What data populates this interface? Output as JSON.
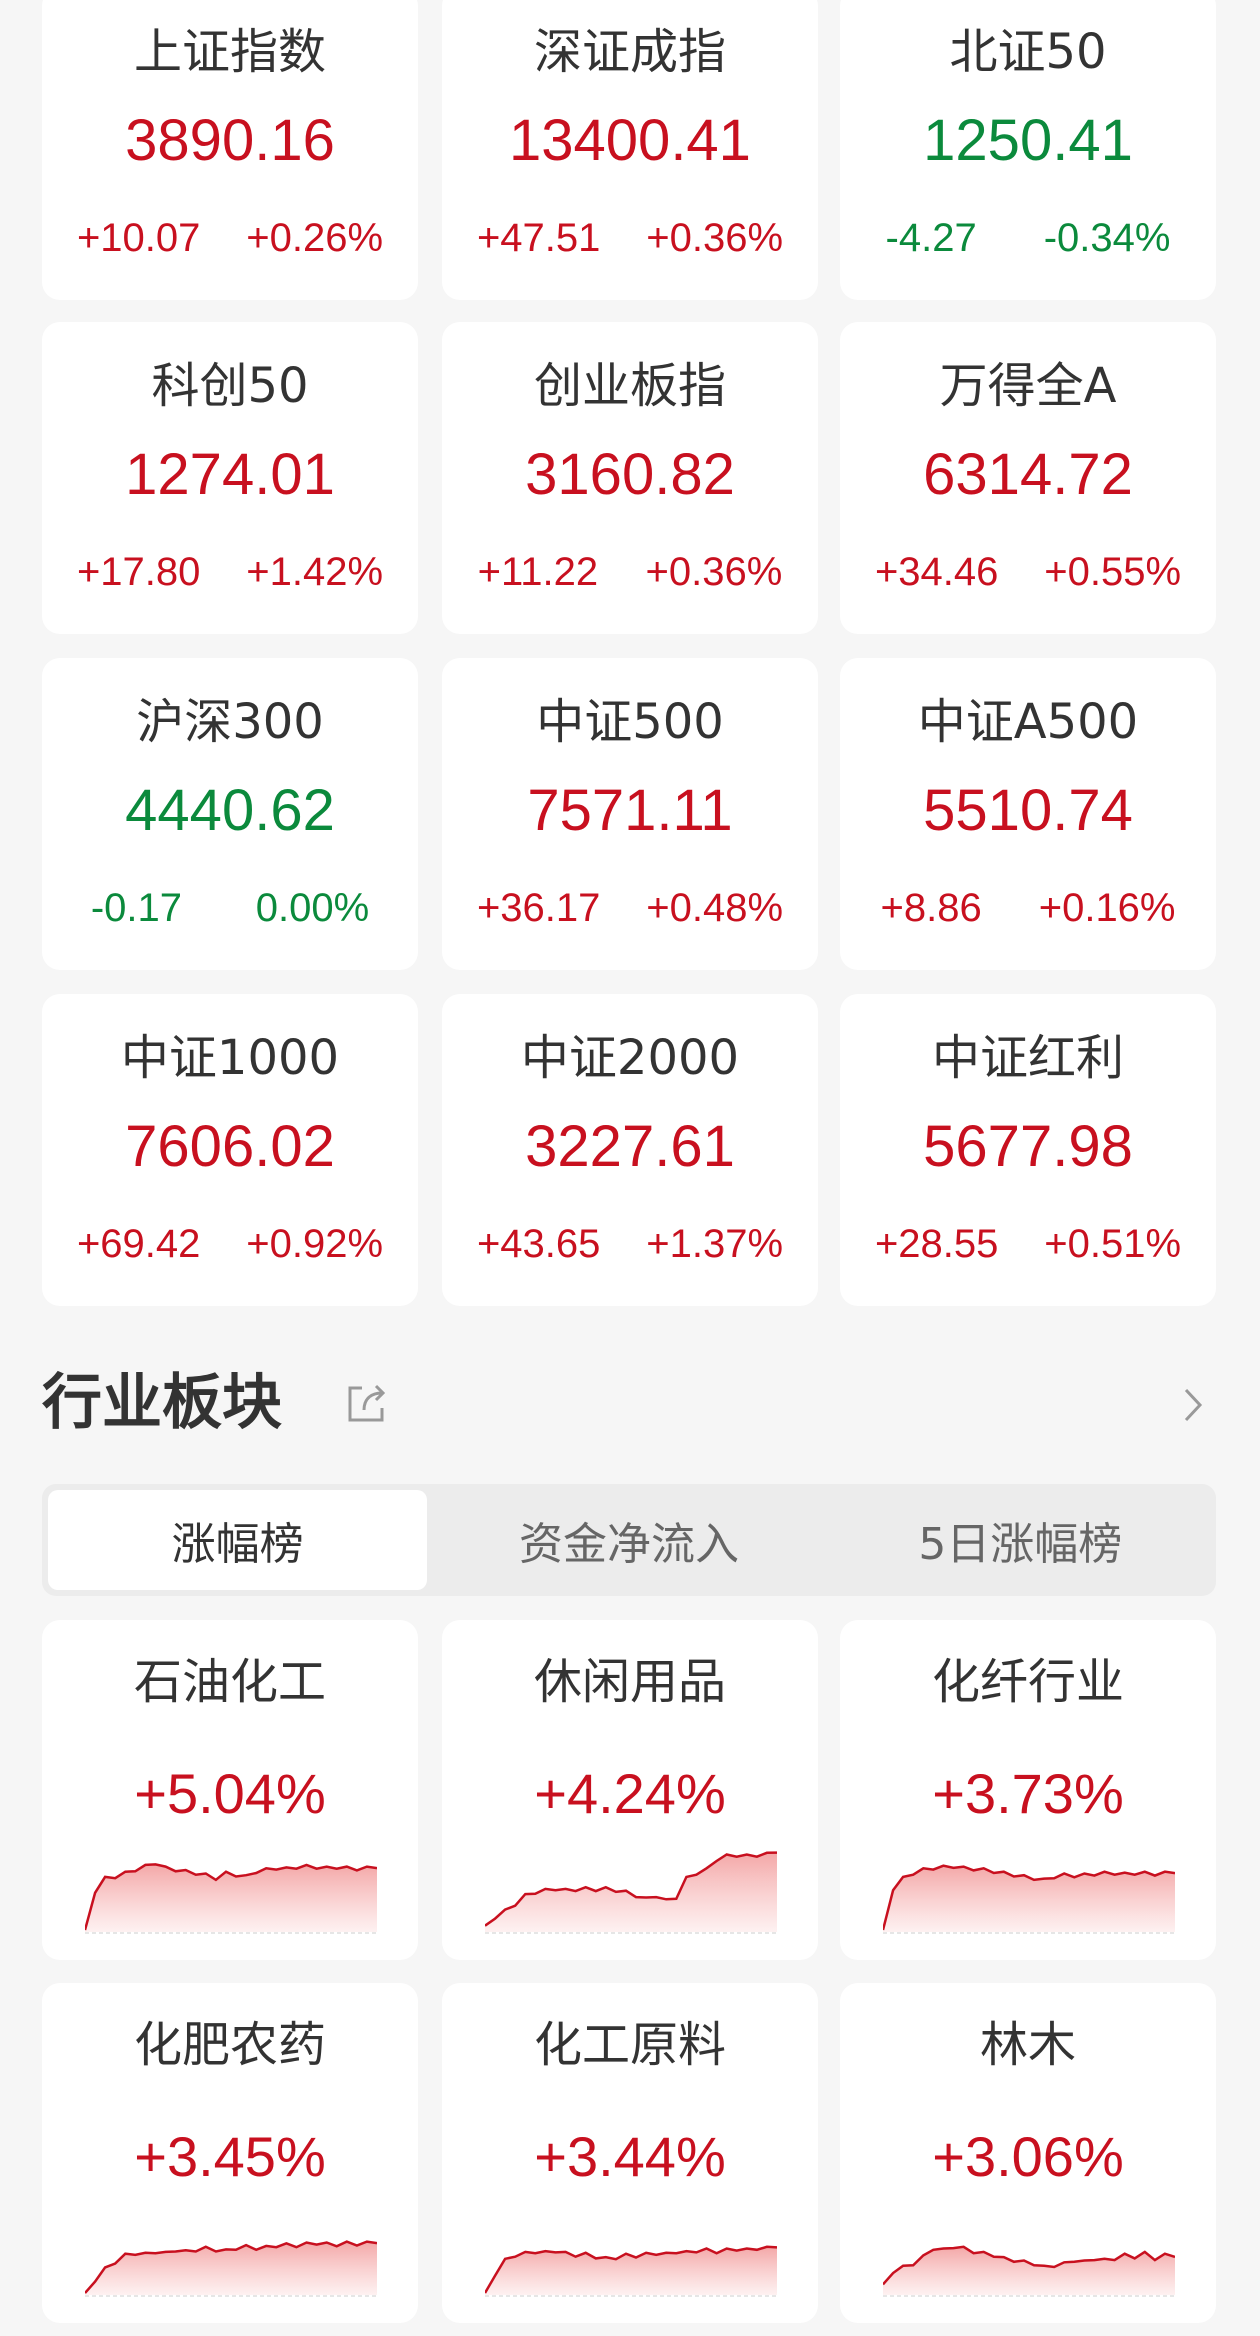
{
  "indices": [
    {
      "name": "上证指数",
      "value": "3890.16",
      "change": "+10.07",
      "pct": "+0.26%",
      "dir": "up"
    },
    {
      "name": "深证成指",
      "value": "13400.41",
      "change": "+47.51",
      "pct": "+0.36%",
      "dir": "up"
    },
    {
      "name": "北证50",
      "value": "1250.41",
      "change": "-4.27",
      "pct": "-0.34%",
      "dir": "down"
    },
    {
      "name": "科创50",
      "value": "1274.01",
      "change": "+17.80",
      "pct": "+1.42%",
      "dir": "up"
    },
    {
      "name": "创业板指",
      "value": "3160.82",
      "change": "+11.22",
      "pct": "+0.36%",
      "dir": "up"
    },
    {
      "name": "万得全A",
      "value": "6314.72",
      "change": "+34.46",
      "pct": "+0.55%",
      "dir": "up"
    },
    {
      "name": "沪深300",
      "value": "4440.62",
      "change": "-0.17",
      "pct": "0.00%",
      "dir": "down"
    },
    {
      "name": "中证500",
      "value": "7571.11",
      "change": "+36.17",
      "pct": "+0.48%",
      "dir": "up"
    },
    {
      "name": "中证A500",
      "value": "5510.74",
      "change": "+8.86",
      "pct": "+0.16%",
      "dir": "up"
    },
    {
      "name": "中证1000",
      "value": "7606.02",
      "change": "+69.42",
      "pct": "+0.92%",
      "dir": "up"
    },
    {
      "name": "中证2000",
      "value": "3227.61",
      "change": "+43.65",
      "pct": "+1.37%",
      "dir": "up"
    },
    {
      "name": "中证红利",
      "value": "5677.98",
      "change": "+28.55",
      "pct": "+0.51%",
      "dir": "up"
    }
  ],
  "section": {
    "title": "行业板块",
    "share_icon": "share-icon",
    "more_icon": "chevron-right-icon"
  },
  "tabs": [
    {
      "label": "涨幅榜",
      "active": true
    },
    {
      "label": "资金净流入",
      "active": false
    },
    {
      "label": "5日涨幅榜",
      "active": false
    }
  ],
  "sectors": [
    {
      "name": "石油化工",
      "pct": "+5.04%",
      "spark": [
        0,
        45,
        60,
        62,
        66,
        70,
        74,
        78,
        72,
        70,
        68,
        66,
        64,
        60,
        66,
        64,
        62,
        68,
        70,
        72,
        71,
        73,
        74,
        73,
        72,
        73,
        72,
        71,
        72,
        72
      ]
    },
    {
      "name": "休闲用品",
      "pct": "+4.24%",
      "spark": [
        5,
        15,
        22,
        30,
        40,
        44,
        46,
        48,
        46,
        47,
        48,
        47,
        48,
        46,
        44,
        40,
        36,
        40,
        34,
        38,
        60,
        66,
        70,
        82,
        86,
        87,
        86,
        87,
        88,
        90
      ]
    },
    {
      "name": "化纤行业",
      "pct": "+3.73%",
      "spark": [
        0,
        48,
        60,
        66,
        70,
        72,
        73,
        74,
        72,
        71,
        70,
        68,
        66,
        64,
        62,
        60,
        58,
        62,
        64,
        63,
        64,
        65,
        66,
        66,
        65,
        66,
        66,
        65,
        66,
        66
      ]
    },
    {
      "name": "化肥农药",
      "pct": "+3.45%",
      "spark": [
        0,
        15,
        28,
        36,
        44,
        46,
        45,
        48,
        46,
        50,
        48,
        50,
        52,
        50,
        49,
        52,
        54,
        52,
        53,
        55,
        56,
        55,
        57,
        58,
        57,
        56,
        58,
        57,
        58,
        58
      ]
    },
    {
      "name": "化工原料",
      "pct": "+3.44%",
      "spark": [
        0,
        22,
        38,
        44,
        46,
        48,
        47,
        49,
        46,
        44,
        45,
        42,
        40,
        41,
        44,
        43,
        45,
        46,
        45,
        48,
        47,
        49,
        50,
        48,
        50,
        51,
        50,
        52,
        52,
        53
      ]
    },
    {
      "name": "林木",
      "pct": "+3.06%",
      "spark": [
        10,
        25,
        30,
        34,
        42,
        52,
        50,
        54,
        52,
        48,
        46,
        44,
        40,
        38,
        36,
        34,
        30,
        32,
        34,
        38,
        36,
        40,
        38,
        40,
        44,
        42,
        46,
        40,
        44,
        42
      ]
    }
  ],
  "colors": {
    "up": "#c8101f",
    "down": "#0b8a3c",
    "background": "#f6f6f6"
  }
}
